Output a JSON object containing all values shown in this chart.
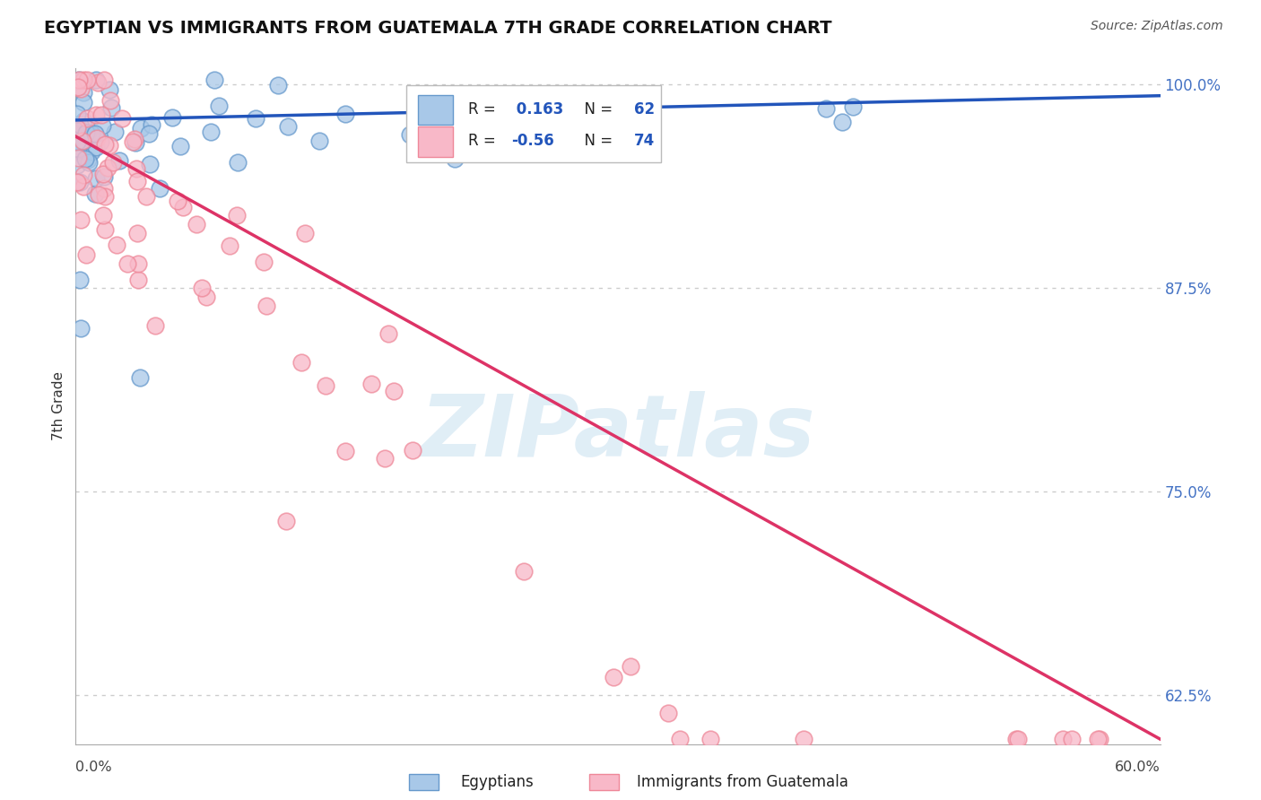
{
  "title": "EGYPTIAN VS IMMIGRANTS FROM GUATEMALA 7TH GRADE CORRELATION CHART",
  "source": "Source: ZipAtlas.com",
  "ylabel": "7th Grade",
  "xmin": 0.0,
  "xmax": 0.6,
  "ymin": 0.595,
  "ymax": 1.01,
  "right_yticks": [
    1.0,
    0.875,
    0.75,
    0.625
  ],
  "right_yticklabels": [
    "100.0%",
    "87.5%",
    "75.0%",
    "62.5%"
  ],
  "blue_R": 0.163,
  "blue_N": 62,
  "pink_R": -0.56,
  "pink_N": 74,
  "blue_color": "#a8c8e8",
  "blue_edge_color": "#6699cc",
  "pink_color": "#f8b8c8",
  "pink_edge_color": "#ee8899",
  "blue_line_color": "#2255bb",
  "pink_line_color": "#dd3366",
  "blue_line_y0": 0.978,
  "blue_line_y1": 0.993,
  "pink_line_y0": 0.968,
  "pink_line_y1": 0.598,
  "legend_blue_label": "Egyptians",
  "legend_pink_label": "Immigrants from Guatemala",
  "watermark_text": "ZIPatlas",
  "grid_color": "#cccccc",
  "axis_color": "#aaaaaa"
}
